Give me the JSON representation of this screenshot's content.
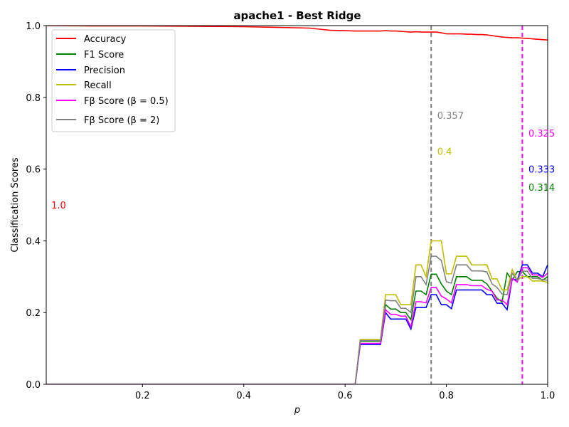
{
  "chart_data": {
    "type": "line",
    "title": "apache1 - Best Ridge",
    "xlabel": "p",
    "ylabel": "Classification Scores",
    "xlim": [
      0.01,
      1.0
    ],
    "ylim": [
      0.0,
      1.0
    ],
    "xticks": [
      0.2,
      0.4,
      0.6,
      0.8,
      1.0
    ],
    "xtick_labels": [
      "0.2",
      "0.4",
      "0.6",
      "0.8",
      "1.0"
    ],
    "yticks": [
      0.0,
      0.2,
      0.4,
      0.6,
      0.8,
      1.0
    ],
    "ytick_labels": [
      "0.0",
      "0.2",
      "0.4",
      "0.6",
      "0.8",
      "1.0"
    ],
    "grid": false,
    "legend_position": "top-left",
    "x": [
      0.01,
      0.1,
      0.2,
      0.3,
      0.4,
      0.5,
      0.53,
      0.55,
      0.57,
      0.6,
      0.62,
      0.63,
      0.64,
      0.65,
      0.66,
      0.67,
      0.68,
      0.69,
      0.7,
      0.71,
      0.72,
      0.73,
      0.74,
      0.75,
      0.76,
      0.77,
      0.78,
      0.79,
      0.8,
      0.81,
      0.82,
      0.83,
      0.84,
      0.85,
      0.86,
      0.87,
      0.88,
      0.89,
      0.9,
      0.91,
      0.92,
      0.93,
      0.94,
      0.95,
      0.96,
      0.97,
      0.98,
      0.99,
      1.0
    ],
    "series": [
      {
        "name": "Accuracy",
        "color": "#ff0000",
        "values": [
          1.0,
          0.999,
          0.999,
          0.998,
          0.997,
          0.994,
          0.993,
          0.99,
          0.987,
          0.986,
          0.985,
          0.985,
          0.985,
          0.985,
          0.985,
          0.985,
          0.986,
          0.985,
          0.985,
          0.984,
          0.983,
          0.982,
          0.983,
          0.982,
          0.982,
          0.982,
          0.982,
          0.98,
          0.977,
          0.977,
          0.977,
          0.977,
          0.976,
          0.976,
          0.975,
          0.975,
          0.974,
          0.972,
          0.97,
          0.968,
          0.967,
          0.966,
          0.966,
          0.965,
          0.964,
          0.963,
          0.962,
          0.961,
          0.96
        ]
      },
      {
        "name": "F1 Score",
        "color": "#008000",
        "values": [
          0,
          0,
          0,
          0,
          0,
          0,
          0,
          0,
          0,
          0,
          0,
          0.12,
          0.12,
          0.12,
          0.12,
          0.12,
          0.222,
          0.21,
          0.21,
          0.2,
          0.2,
          0.18,
          0.26,
          0.26,
          0.25,
          0.307,
          0.307,
          0.28,
          0.26,
          0.25,
          0.3,
          0.3,
          0.3,
          0.29,
          0.29,
          0.29,
          0.28,
          0.26,
          0.24,
          0.23,
          0.31,
          0.29,
          0.314,
          0.314,
          0.3,
          0.3,
          0.3,
          0.29,
          0.3
        ]
      },
      {
        "name": "Precision",
        "color": "#0000ff",
        "values": [
          0,
          0,
          0,
          0,
          0,
          0,
          0,
          0,
          0,
          0,
          0,
          0.111,
          0.111,
          0.111,
          0.111,
          0.111,
          0.2,
          0.182,
          0.182,
          0.182,
          0.182,
          0.154,
          0.214,
          0.214,
          0.214,
          0.25,
          0.25,
          0.222,
          0.222,
          0.211,
          0.263,
          0.263,
          0.263,
          0.263,
          0.263,
          0.263,
          0.25,
          0.25,
          0.226,
          0.226,
          0.208,
          0.294,
          0.29,
          0.333,
          0.333,
          0.31,
          0.31,
          0.3,
          0.333
        ]
      },
      {
        "name": "Recall",
        "color": "#bfbf00",
        "values": [
          0,
          0,
          0,
          0,
          0,
          0,
          0,
          0,
          0,
          0,
          0,
          0.125,
          0.125,
          0.125,
          0.125,
          0.125,
          0.25,
          0.25,
          0.25,
          0.222,
          0.222,
          0.222,
          0.333,
          0.333,
          0.3,
          0.4,
          0.4,
          0.4,
          0.308,
          0.308,
          0.357,
          0.357,
          0.357,
          0.333,
          0.333,
          0.333,
          0.333,
          0.294,
          0.294,
          0.263,
          0.263,
          0.32,
          0.29,
          0.3,
          0.3,
          0.288,
          0.288,
          0.288,
          0.284
        ]
      },
      {
        "name": "Fβ Score (β = 0.5)",
        "color": "#ff00ff",
        "values": [
          0,
          0,
          0,
          0,
          0,
          0,
          0,
          0,
          0,
          0,
          0,
          0.114,
          0.114,
          0.114,
          0.114,
          0.114,
          0.208,
          0.195,
          0.195,
          0.19,
          0.19,
          0.16,
          0.23,
          0.23,
          0.227,
          0.27,
          0.27,
          0.246,
          0.238,
          0.227,
          0.278,
          0.278,
          0.278,
          0.275,
          0.275,
          0.275,
          0.265,
          0.26,
          0.235,
          0.235,
          0.222,
          0.295,
          0.285,
          0.325,
          0.325,
          0.305,
          0.305,
          0.298,
          0.31
        ]
      },
      {
        "name": "Fβ Score (β = 2)",
        "color": "#808080",
        "values": [
          0,
          0,
          0,
          0,
          0,
          0,
          0,
          0,
          0,
          0,
          0,
          0.122,
          0.122,
          0.122,
          0.122,
          0.122,
          0.235,
          0.233,
          0.233,
          0.212,
          0.212,
          0.2,
          0.3,
          0.3,
          0.278,
          0.357,
          0.357,
          0.345,
          0.286,
          0.282,
          0.333,
          0.333,
          0.333,
          0.316,
          0.316,
          0.316,
          0.313,
          0.28,
          0.27,
          0.252,
          0.25,
          0.31,
          0.29,
          0.315,
          0.315,
          0.295,
          0.295,
          0.292,
          0.29
        ]
      }
    ],
    "vlines": [
      {
        "x": 0.77,
        "color": "#808080"
      },
      {
        "x": 0.95,
        "color": "#ff00ff"
      }
    ],
    "annotations": [
      {
        "text": "1.0",
        "x": 0.02,
        "y": 0.5,
        "color": "#ff0000"
      },
      {
        "text": "0.357",
        "x": 0.782,
        "y": 0.75,
        "color": "#808080"
      },
      {
        "text": "0.4",
        "x": 0.782,
        "y": 0.65,
        "color": "#bfbf00"
      },
      {
        "text": "0.325",
        "x": 0.962,
        "y": 0.7,
        "color": "#ff00ff"
      },
      {
        "text": "0.333",
        "x": 0.962,
        "y": 0.6,
        "color": "#0000ff"
      },
      {
        "text": "0.314",
        "x": 0.962,
        "y": 0.55,
        "color": "#008000"
      }
    ]
  }
}
